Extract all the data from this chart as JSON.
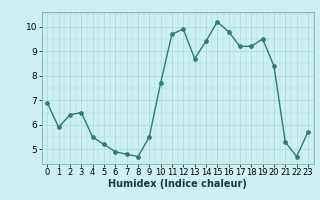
{
  "x": [
    0,
    1,
    2,
    3,
    4,
    5,
    6,
    7,
    8,
    9,
    10,
    11,
    12,
    13,
    14,
    15,
    16,
    17,
    18,
    19,
    20,
    21,
    22,
    23
  ],
  "y": [
    6.9,
    5.9,
    6.4,
    6.5,
    5.5,
    5.2,
    4.9,
    4.8,
    4.7,
    5.5,
    7.7,
    9.7,
    9.9,
    8.7,
    9.4,
    10.2,
    9.8,
    9.2,
    9.2,
    9.5,
    8.4,
    5.3,
    4.7,
    5.7
  ],
  "line_color": "#2e7d6e",
  "bg_color": "#cdf0f0",
  "grid_color": "#a8d8d8",
  "xlabel": "Humidex (Indice chaleur)",
  "ylim": [
    4.4,
    10.6
  ],
  "xlim": [
    -0.5,
    23.5
  ],
  "yticks": [
    5,
    6,
    7,
    8,
    9,
    10
  ],
  "xticks": [
    0,
    1,
    2,
    3,
    4,
    5,
    6,
    7,
    8,
    9,
    10,
    11,
    12,
    13,
    14,
    15,
    16,
    17,
    18,
    19,
    20,
    21,
    22,
    23
  ],
  "linewidth": 1.0,
  "markersize": 2.8,
  "tick_fontsize": 6.0,
  "xlabel_fontsize": 7.0
}
